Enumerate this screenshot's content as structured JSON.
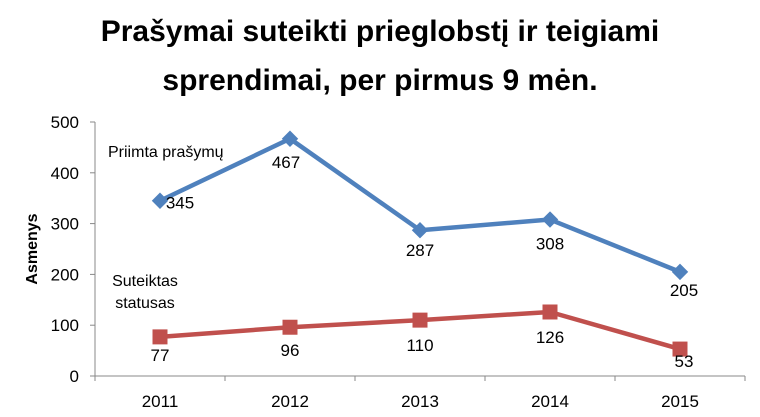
{
  "chart_data": {
    "type": "line",
    "title_lines": [
      "Prašymai suteikti prieglobstį ir teigiami",
      "sprendimai, per pirmus 9 mėn."
    ],
    "ylabel": "Asmenys",
    "xlabel": "",
    "categories": [
      "2011",
      "2012",
      "2013",
      "2014",
      "2015"
    ],
    "ylim": [
      0,
      500
    ],
    "yticks": [
      0,
      100,
      200,
      300,
      400,
      500
    ],
    "grid": false,
    "series": [
      {
        "name": "Priimta prašymų",
        "name_lines": [
          "Priimta prašymų"
        ],
        "values": [
          345,
          467,
          287,
          308,
          205
        ],
        "color": "#4f81bd",
        "marker": "diamond"
      },
      {
        "name": "Suteiktas statusas",
        "name_lines": [
          "Suteiktas",
          "statusas"
        ],
        "values": [
          77,
          96,
          110,
          126,
          53
        ],
        "color": "#c0504d",
        "marker": "square"
      }
    ]
  }
}
